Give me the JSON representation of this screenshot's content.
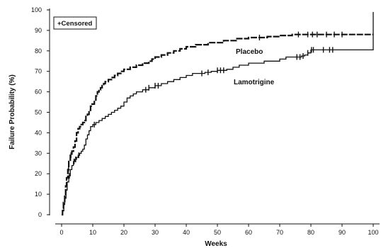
{
  "chart_data": {
    "type": "line",
    "xlabel": "Weeks",
    "ylabel": "Failure Probability (%)",
    "xlim": [
      0,
      100
    ],
    "ylim": [
      0,
      100
    ],
    "x_ticks": [
      0,
      10,
      20,
      30,
      40,
      50,
      60,
      70,
      80,
      90,
      100
    ],
    "y_ticks": [
      0,
      10,
      20,
      30,
      40,
      50,
      60,
      70,
      80,
      90,
      100
    ],
    "grid": false,
    "legend": {
      "text": "+Censored",
      "placement": "top-left"
    },
    "series": [
      {
        "name": "Placebo",
        "style": "dashed",
        "points": [
          [
            0,
            0
          ],
          [
            0.3,
            2
          ],
          [
            0.6,
            6
          ],
          [
            1,
            9
          ],
          [
            1.3,
            14
          ],
          [
            1.6,
            18
          ],
          [
            2,
            22
          ],
          [
            2.3,
            26
          ],
          [
            2.8,
            29
          ],
          [
            3.3,
            31
          ],
          [
            3.8,
            33
          ],
          [
            4.3,
            36
          ],
          [
            4.8,
            40
          ],
          [
            5.3,
            42
          ],
          [
            5.8,
            43
          ],
          [
            6.3,
            44
          ],
          [
            6.8,
            45
          ],
          [
            7.3,
            46
          ],
          [
            7.8,
            48
          ],
          [
            8.3,
            49
          ],
          [
            8.8,
            51
          ],
          [
            9.3,
            53
          ],
          [
            9.8,
            54
          ],
          [
            10.5,
            56
          ],
          [
            11,
            58
          ],
          [
            11.5,
            60
          ],
          [
            12,
            61
          ],
          [
            12.5,
            62
          ],
          [
            13,
            63
          ],
          [
            13.5,
            64
          ],
          [
            14,
            65
          ],
          [
            15,
            66
          ],
          [
            16,
            67
          ],
          [
            17,
            68
          ],
          [
            18,
            69
          ],
          [
            19,
            70
          ],
          [
            20,
            71
          ],
          [
            22,
            72
          ],
          [
            24,
            73
          ],
          [
            26,
            74
          ],
          [
            28,
            75
          ],
          [
            29,
            76
          ],
          [
            30,
            77
          ],
          [
            32,
            78
          ],
          [
            34,
            79
          ],
          [
            36,
            80
          ],
          [
            38,
            81
          ],
          [
            40,
            82
          ],
          [
            43,
            83
          ],
          [
            47,
            84
          ],
          [
            52,
            85
          ],
          [
            56,
            86
          ],
          [
            60,
            86.5
          ],
          [
            66,
            87
          ],
          [
            70,
            87.5
          ],
          [
            74,
            88
          ],
          [
            90,
            88
          ],
          [
            100,
            88
          ]
        ],
        "censored_x": [
          2.2,
          3,
          63.5,
          76,
          79,
          80.5,
          82,
          85,
          87.5,
          90
        ]
      },
      {
        "name": "Lamotrigine",
        "style": "solid",
        "points": [
          [
            0,
            0
          ],
          [
            0.3,
            2
          ],
          [
            0.7,
            5
          ],
          [
            1,
            8
          ],
          [
            1.4,
            12
          ],
          [
            1.8,
            16
          ],
          [
            2.3,
            19
          ],
          [
            2.8,
            22
          ],
          [
            3.3,
            24
          ],
          [
            3.8,
            26
          ],
          [
            4.3,
            27
          ],
          [
            4.8,
            28
          ],
          [
            5.3,
            29
          ],
          [
            5.8,
            30
          ],
          [
            6.3,
            31
          ],
          [
            6.8,
            32
          ],
          [
            7.3,
            34
          ],
          [
            7.8,
            37
          ],
          [
            8.3,
            39
          ],
          [
            8.8,
            41
          ],
          [
            9.3,
            43
          ],
          [
            10,
            44
          ],
          [
            11,
            45
          ],
          [
            12,
            46
          ],
          [
            13,
            47
          ],
          [
            14,
            48
          ],
          [
            15,
            49
          ],
          [
            16,
            50
          ],
          [
            17,
            51
          ],
          [
            18,
            52
          ],
          [
            19,
            53
          ],
          [
            20,
            55
          ],
          [
            21,
            57
          ],
          [
            22,
            58
          ],
          [
            23,
            59
          ],
          [
            24,
            60
          ],
          [
            26,
            61
          ],
          [
            28,
            62
          ],
          [
            30,
            63
          ],
          [
            32,
            64
          ],
          [
            34,
            65
          ],
          [
            36,
            66
          ],
          [
            38,
            67
          ],
          [
            40,
            68
          ],
          [
            42,
            69
          ],
          [
            46,
            69.5
          ],
          [
            48,
            70
          ],
          [
            50,
            70.5
          ],
          [
            53,
            71
          ],
          [
            55,
            72
          ],
          [
            57,
            73
          ],
          [
            60,
            74
          ],
          [
            65,
            75
          ],
          [
            70,
            76
          ],
          [
            72,
            77
          ],
          [
            77,
            77.5
          ],
          [
            78,
            78
          ],
          [
            79,
            79
          ],
          [
            80,
            80.5
          ],
          [
            89,
            80.5
          ],
          [
            100,
            80.5
          ],
          [
            100,
            99
          ]
        ],
        "censored_x": [
          2.5,
          4,
          4.5,
          5.5,
          10.5,
          27,
          28,
          30,
          31,
          45,
          47,
          50,
          51,
          52,
          75.5,
          76.5,
          77.5,
          79,
          80.2,
          80.8,
          84,
          86,
          87
        ]
      }
    ]
  }
}
